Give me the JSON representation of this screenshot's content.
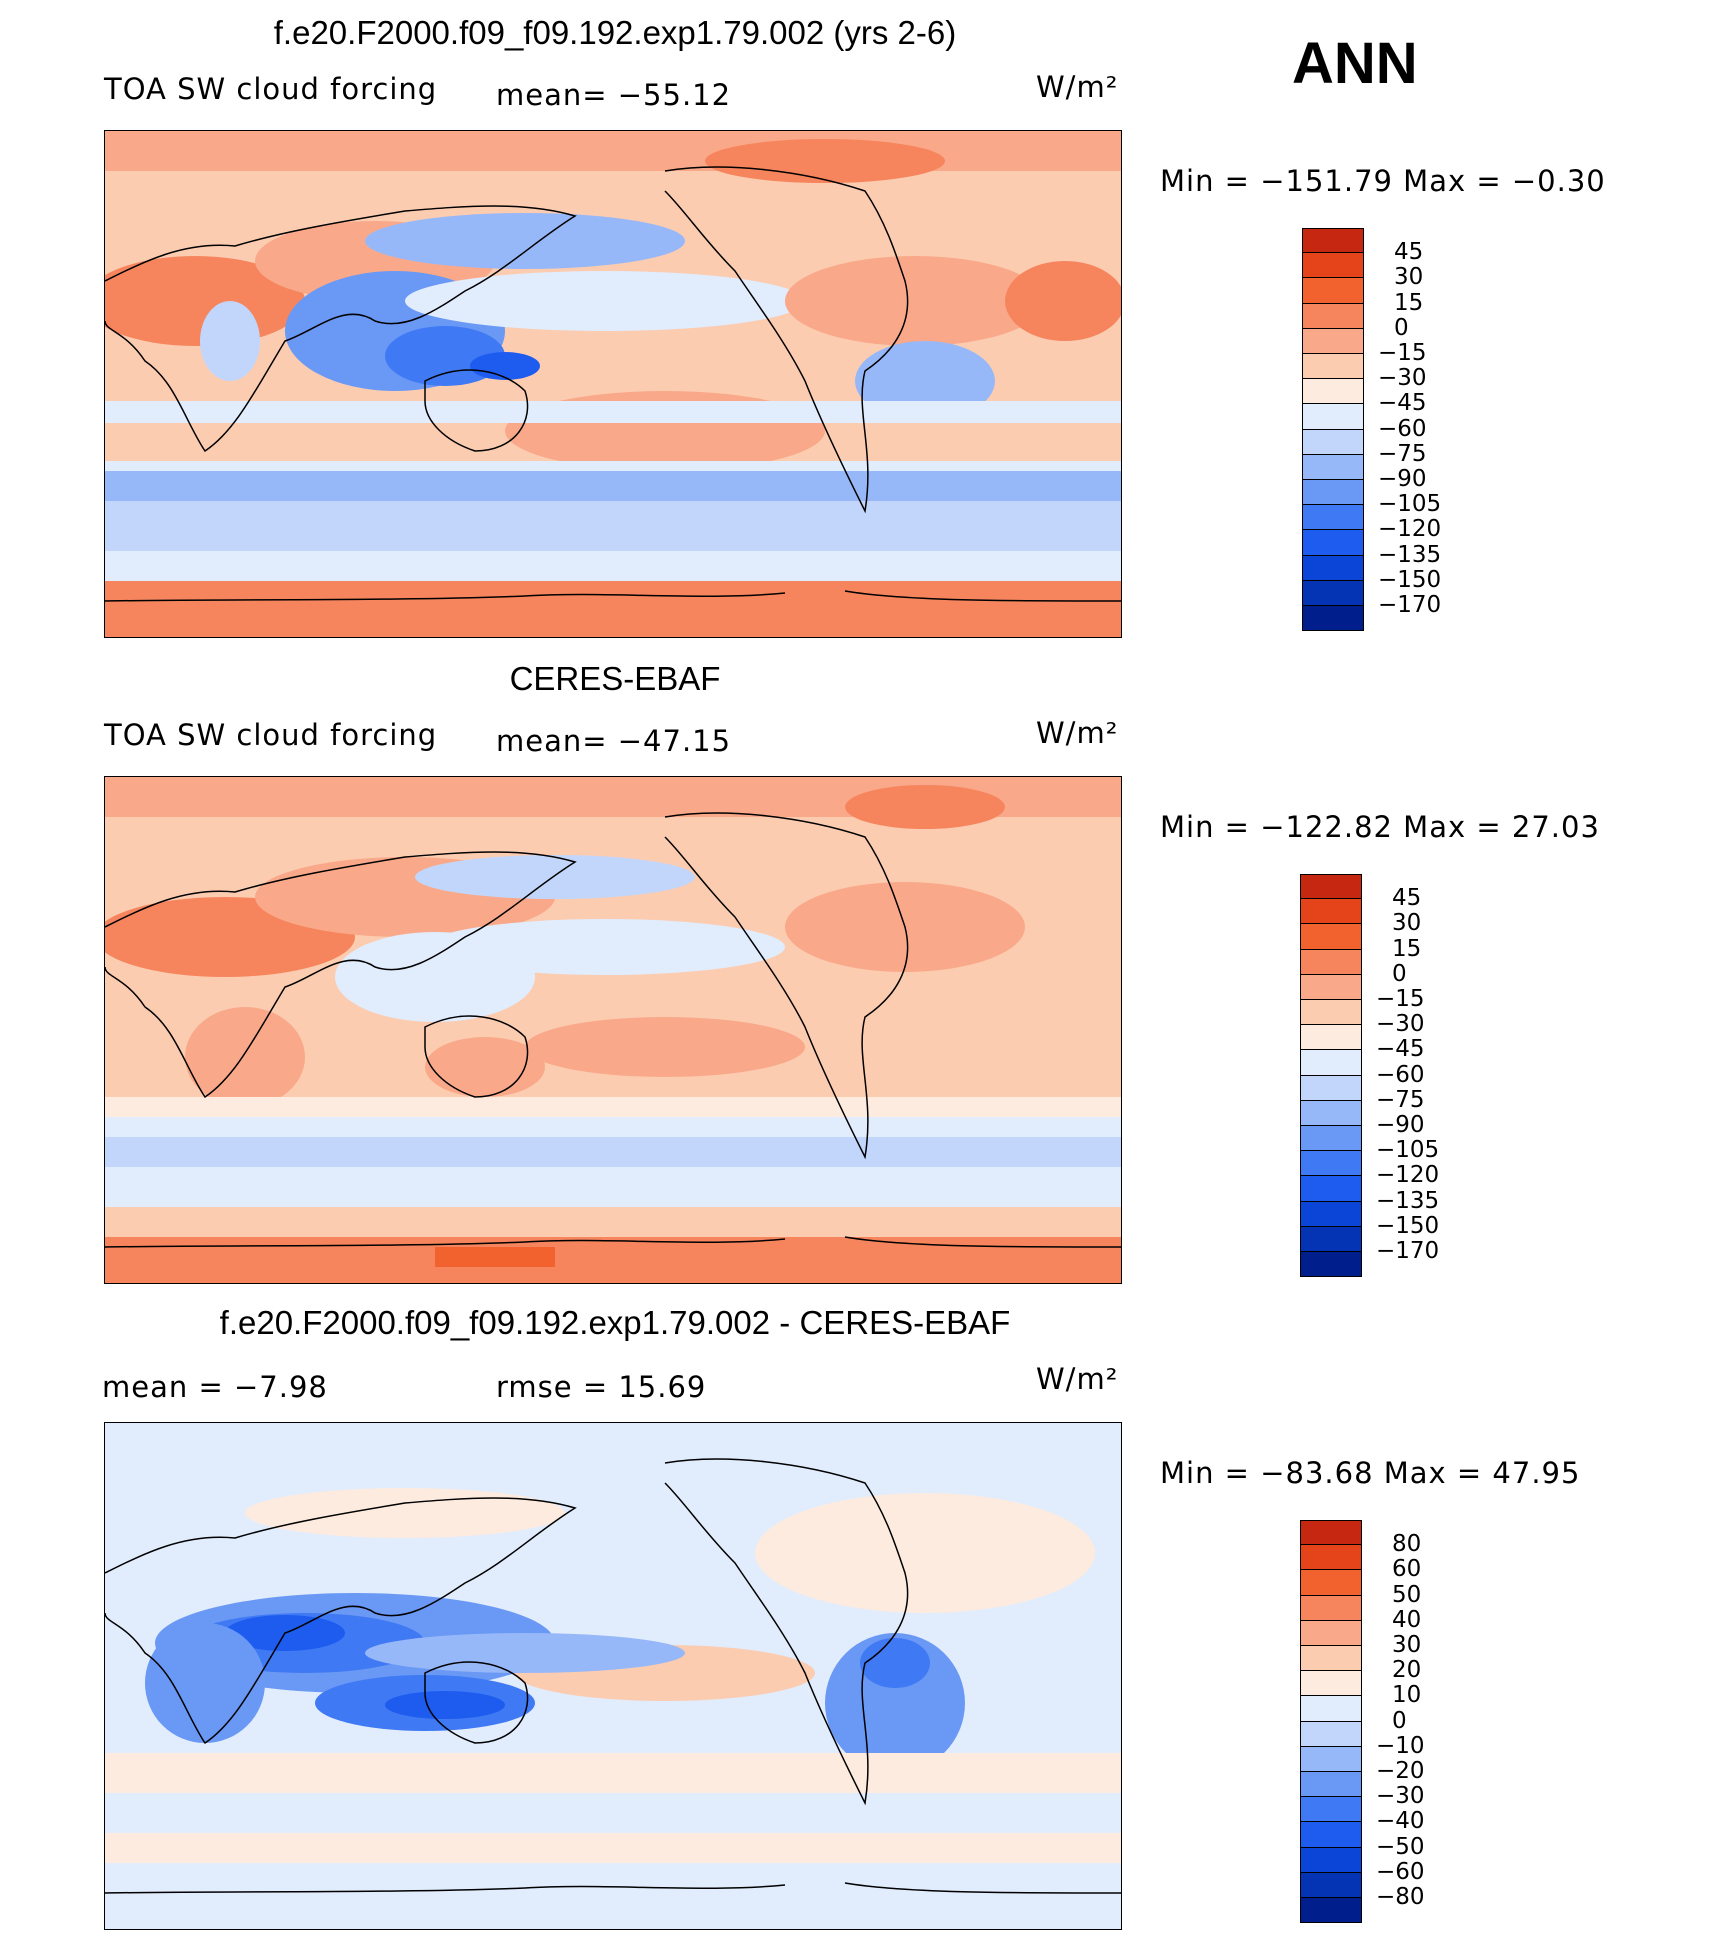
{
  "season": "ANN",
  "colors": {
    "field_scale": [
      "#001f8c",
      "#0433b3",
      "#0b45d8",
      "#1e5cf0",
      "#3f79f3",
      "#6a98f5",
      "#97b8f8",
      "#c2d6fb",
      "#e1ecfc",
      "#fdebdf",
      "#fcccb1",
      "#f9a989",
      "#f6855e",
      "#f1622f",
      "#e5431a",
      "#c62710",
      "#9c1306"
    ],
    "diff_scale": [
      "#001f8c",
      "#0433b3",
      "#0b45d8",
      "#1e5cf0",
      "#3f79f3",
      "#6a98f5",
      "#97b8f8",
      "#c2d6fb",
      "#e1ecfc",
      "#fdebdf",
      "#fcccb1",
      "#f9a989",
      "#f6855e",
      "#f1622f",
      "#e5431a",
      "#c62710",
      "#9c1306"
    ],
    "coastline": "#000000"
  },
  "panels": [
    {
      "id": "model",
      "title": "f.e20.F2000.f09_f09.192.exp1.79.002 (yrs 2-6)",
      "left_label": "TOA SW cloud forcing",
      "mean_label": "mean= −55.12",
      "units": "W/m²",
      "minmax": "Min = −151.79 Max =  −0.30",
      "colorbar_labels": [
        "45",
        "30",
        "15",
        "0",
        "−15",
        "−30",
        "−45",
        "−60",
        "−75",
        "−90",
        "−105",
        "−120",
        "−135",
        "−150",
        "−170"
      ]
    },
    {
      "id": "obs",
      "title": "CERES-EBAF",
      "left_label": "TOA SW cloud forcing",
      "mean_label": "mean= −47.15",
      "units": "W/m²",
      "minmax": "Min = −122.82 Max =  27.03",
      "colorbar_labels": [
        "45",
        "30",
        "15",
        "0",
        "−15",
        "−30",
        "−45",
        "−60",
        "−75",
        "−90",
        "−105",
        "−120",
        "−135",
        "−150",
        "−170"
      ]
    },
    {
      "id": "diff",
      "title": "f.e20.F2000.f09_f09.192.exp1.79.002 - CERES-EBAF",
      "left_label": "mean =   −7.98",
      "mean_label": "rmse =   15.69",
      "units": "W/m²",
      "minmax": "Min = −83.68 Max =  47.95",
      "colorbar_labels": [
        "80",
        "60",
        "50",
        "40",
        "30",
        "20",
        "10",
        "0",
        "−10",
        "−20",
        "−30",
        "−40",
        "−50",
        "−60",
        "−80"
      ]
    }
  ]
}
